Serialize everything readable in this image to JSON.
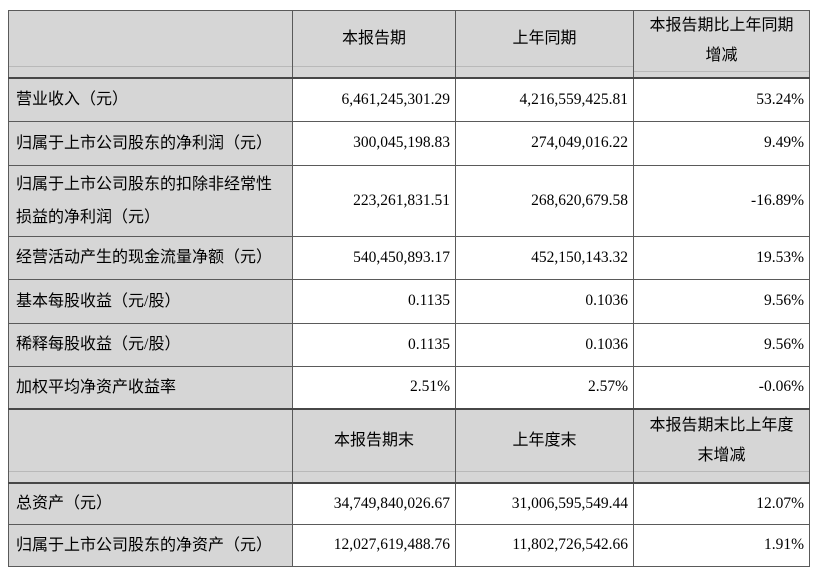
{
  "colors": {
    "header_bg": "#d6d6d6",
    "label_bg": "#d6d6d6",
    "cell_bg": "#ffffff",
    "border": "#5a5a5a",
    "section_border": "#474747"
  },
  "table": {
    "period_header": {
      "current": "本报告期",
      "prior": "上年同期",
      "change_line1": "本报告期比上年同期",
      "change_line2": "增减"
    },
    "period_rows": [
      {
        "label": "营业收入（元）",
        "current": "6,461,245,301.29",
        "prior": "4,216,559,425.81",
        "change": "53.24%"
      },
      {
        "label": "归属于上市公司股东的净利润（元）",
        "current": "300,045,198.83",
        "prior": "274,049,016.22",
        "change": "9.49%"
      },
      {
        "label": "归属于上市公司股东的扣除非经常性损益的净利润（元）",
        "current": "223,261,831.51",
        "prior": "268,620,679.58",
        "change": "-16.89%"
      },
      {
        "label": "经营活动产生的现金流量净额（元）",
        "current": "540,450,893.17",
        "prior": "452,150,143.32",
        "change": "19.53%"
      },
      {
        "label": "基本每股收益（元/股）",
        "current": "0.1135",
        "prior": "0.1036",
        "change": "9.56%"
      },
      {
        "label": "稀释每股收益（元/股）",
        "current": "0.1135",
        "prior": "0.1036",
        "change": "9.56%"
      },
      {
        "label": "加权平均净资产收益率",
        "current": "2.51%",
        "prior": "2.57%",
        "change": "-0.06%"
      }
    ],
    "yearend_header": {
      "current": "本报告期末",
      "prior": "上年度末",
      "change_line1": "本报告期末比上年度",
      "change_line2": "末增减"
    },
    "yearend_rows": [
      {
        "label": "总资产（元）",
        "current": "34,749,840,026.67",
        "prior": "31,006,595,549.44",
        "change": "12.07%"
      },
      {
        "label": "归属于上市公司股东的净资产（元）",
        "current": "12,027,619,488.76",
        "prior": "11,802,726,542.66",
        "change": "1.91%"
      }
    ]
  }
}
